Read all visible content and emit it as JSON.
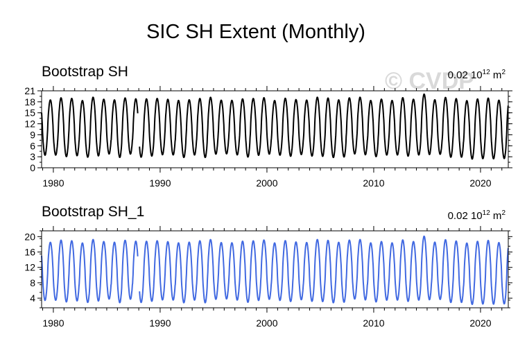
{
  "figure": {
    "title": "SIC SH Extent (Monthly)"
  },
  "watermark": {
    "text": "© CVDP"
  },
  "chart_data": [
    {
      "type": "line",
      "title": "Bootstrap SH",
      "units": {
        "prefix": "0.02 10",
        "exp": "12",
        "unit": " m",
        "unit_exp": "2"
      },
      "xlim": [
        1978.9,
        2022.6
      ],
      "ylim": [
        0,
        21
      ],
      "xticks": [
        "1980",
        "1990",
        "2000",
        "2010",
        "2020"
      ],
      "xtick_values": [
        1980,
        1990,
        2000,
        2010,
        2020
      ],
      "yticks": [
        "0",
        "3",
        "6",
        "9",
        "12",
        "15",
        "18",
        "21"
      ],
      "ytick_values": [
        0,
        3,
        6,
        9,
        12,
        15,
        18,
        21
      ],
      "color": "#000000",
      "series": [
        {
          "name": "Bootstrap SH",
          "start_year": 1978.9,
          "gap": [
            1987.9,
            1988.05
          ],
          "seasonal_min_mean": 3.3,
          "seasonal_max_mean": 18.8,
          "max_peak": 20.1,
          "max_peak_year": 2014
        }
      ]
    },
    {
      "type": "line",
      "title": "Bootstrap SH_1",
      "units": {
        "prefix": "0.02 10",
        "exp": "12",
        "unit": " m",
        "unit_exp": "2"
      },
      "xlim": [
        1978.9,
        2022.6
      ],
      "ylim": [
        1.5,
        21.5
      ],
      "xticks": [
        "1980",
        "1990",
        "2000",
        "2010",
        "2020"
      ],
      "xtick_values": [
        1980,
        1990,
        2000,
        2010,
        2020
      ],
      "yticks": [
        "4",
        "8",
        "12",
        "16",
        "20"
      ],
      "ytick_values": [
        4,
        8,
        12,
        16,
        20
      ],
      "color": "#4169e1",
      "series": [
        {
          "name": "Bootstrap SH_1",
          "start_year": 1978.9,
          "gap": [
            1987.9,
            1988.05
          ],
          "seasonal_min_mean": 3.3,
          "seasonal_max_mean": 18.8,
          "max_peak": 20.1,
          "max_peak_year": 2014
        }
      ]
    }
  ]
}
